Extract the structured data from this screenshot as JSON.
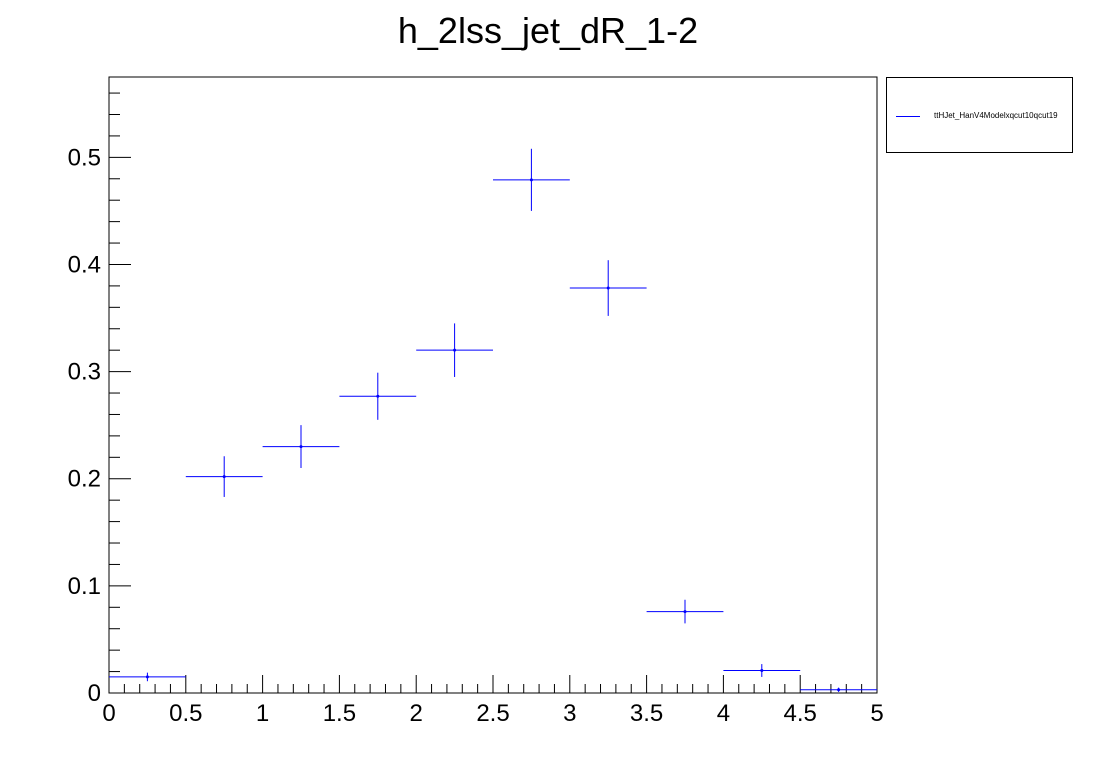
{
  "chart_data": {
    "type": "scatter",
    "title": "h_2lss_jet_dR_1-2",
    "xlabel": "",
    "ylabel": "",
    "xlim": [
      0,
      5
    ],
    "ylim": [
      0,
      0.575
    ],
    "x_ticks": [
      "0",
      "0.5",
      "1",
      "1.5",
      "2",
      "2.5",
      "3",
      "3.5",
      "4",
      "4.5",
      "5"
    ],
    "y_ticks": [
      "0",
      "0.1",
      "0.2",
      "0.3",
      "0.4",
      "0.5"
    ],
    "legend_position": "top-right",
    "grid": false,
    "color": "#0000ff",
    "series": [
      {
        "name": "ttHJet_HanV4Modelxqcut10qcut19",
        "bin_width": 0.5,
        "x": [
          0.25,
          0.75,
          1.25,
          1.75,
          2.25,
          2.75,
          3.25,
          3.75,
          4.25,
          4.75
        ],
        "y": [
          0.015,
          0.202,
          0.23,
          0.277,
          0.32,
          0.479,
          0.378,
          0.076,
          0.021,
          0.003
        ],
        "y_err": [
          0.004,
          0.019,
          0.02,
          0.022,
          0.025,
          0.029,
          0.026,
          0.011,
          0.006,
          0.002
        ]
      }
    ]
  }
}
